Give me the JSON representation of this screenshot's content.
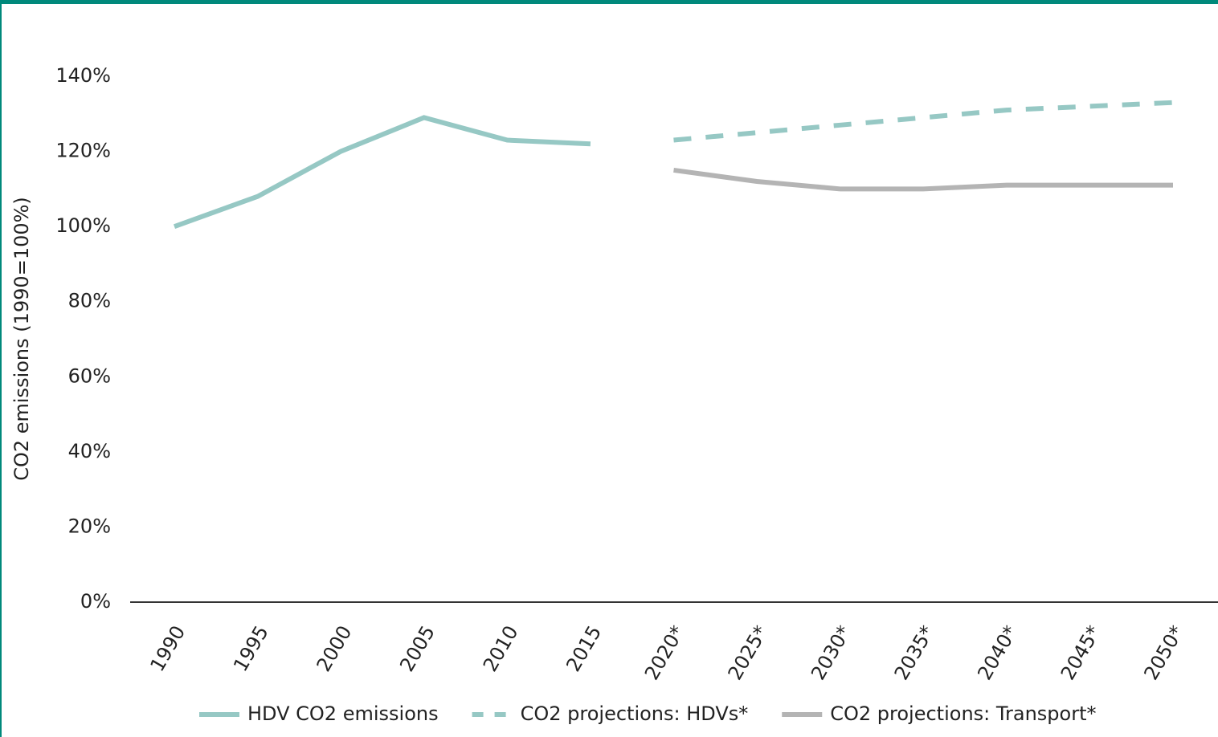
{
  "chart_data": {
    "type": "line",
    "y_label": "CO2 emissions (1990=100%)",
    "categories": [
      "1990",
      "1995",
      "2000",
      "2005",
      "2010",
      "2015",
      "2020*",
      "2025*",
      "2030*",
      "2035*",
      "2040*",
      "2045*",
      "2050*"
    ],
    "series": [
      {
        "name": "HDV CO2 emissions",
        "color": "#96c8c4",
        "style": "solid",
        "values": [
          100,
          108,
          120,
          129,
          123,
          122,
          null,
          null,
          null,
          null,
          null,
          null,
          null
        ]
      },
      {
        "name": "CO2 projections: HDVs*",
        "color": "#96c8c4",
        "style": "dashed",
        "values": [
          null,
          null,
          null,
          null,
          null,
          null,
          123,
          125,
          127,
          129,
          131,
          132,
          133
        ]
      },
      {
        "name": "CO2 projections: Transport*",
        "color": "#b4b4b4",
        "style": "solid",
        "values": [
          null,
          null,
          null,
          null,
          null,
          null,
          115,
          112,
          110,
          110,
          111,
          111,
          111
        ]
      }
    ],
    "ylim": [
      0,
      140
    ],
    "yticks": [
      {
        "value": 0,
        "label": "0%"
      },
      {
        "value": 20,
        "label": "20%"
      },
      {
        "value": 40,
        "label": "40%"
      },
      {
        "value": 60,
        "label": "60%"
      },
      {
        "value": 80,
        "label": "80%"
      },
      {
        "value": 100,
        "label": "100%"
      },
      {
        "value": 120,
        "label": "120%"
      },
      {
        "value": 140,
        "label": "140%"
      }
    ],
    "legend": "bottom"
  }
}
